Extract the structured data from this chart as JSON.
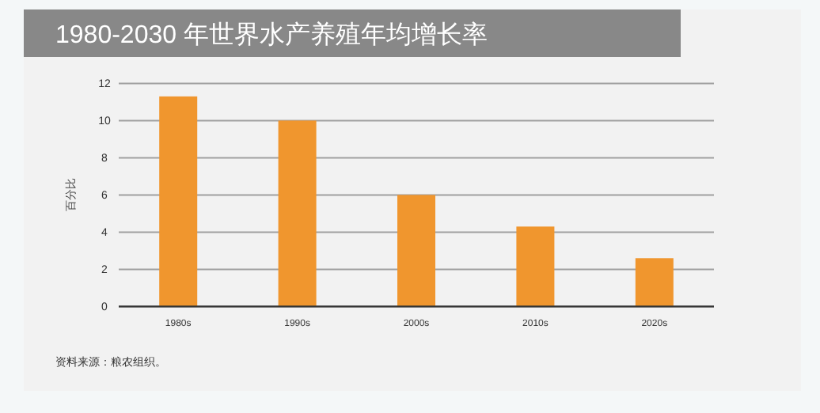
{
  "chart_data": {
    "type": "bar",
    "title": "1980-2030 年世界水产养殖年均增长率",
    "ylabel": "百分比",
    "categories": [
      "1980s",
      "1990s",
      "2000s",
      "2010s",
      "2020s"
    ],
    "values": [
      11.3,
      10.0,
      6.0,
      4.3,
      2.6
    ],
    "color": "#f0962e",
    "ylim": [
      0,
      12
    ],
    "yticks": [
      0,
      2,
      4,
      6,
      8,
      10,
      12
    ],
    "grid": "y",
    "annotations": [
      "资料来源：粮农组织。"
    ]
  }
}
